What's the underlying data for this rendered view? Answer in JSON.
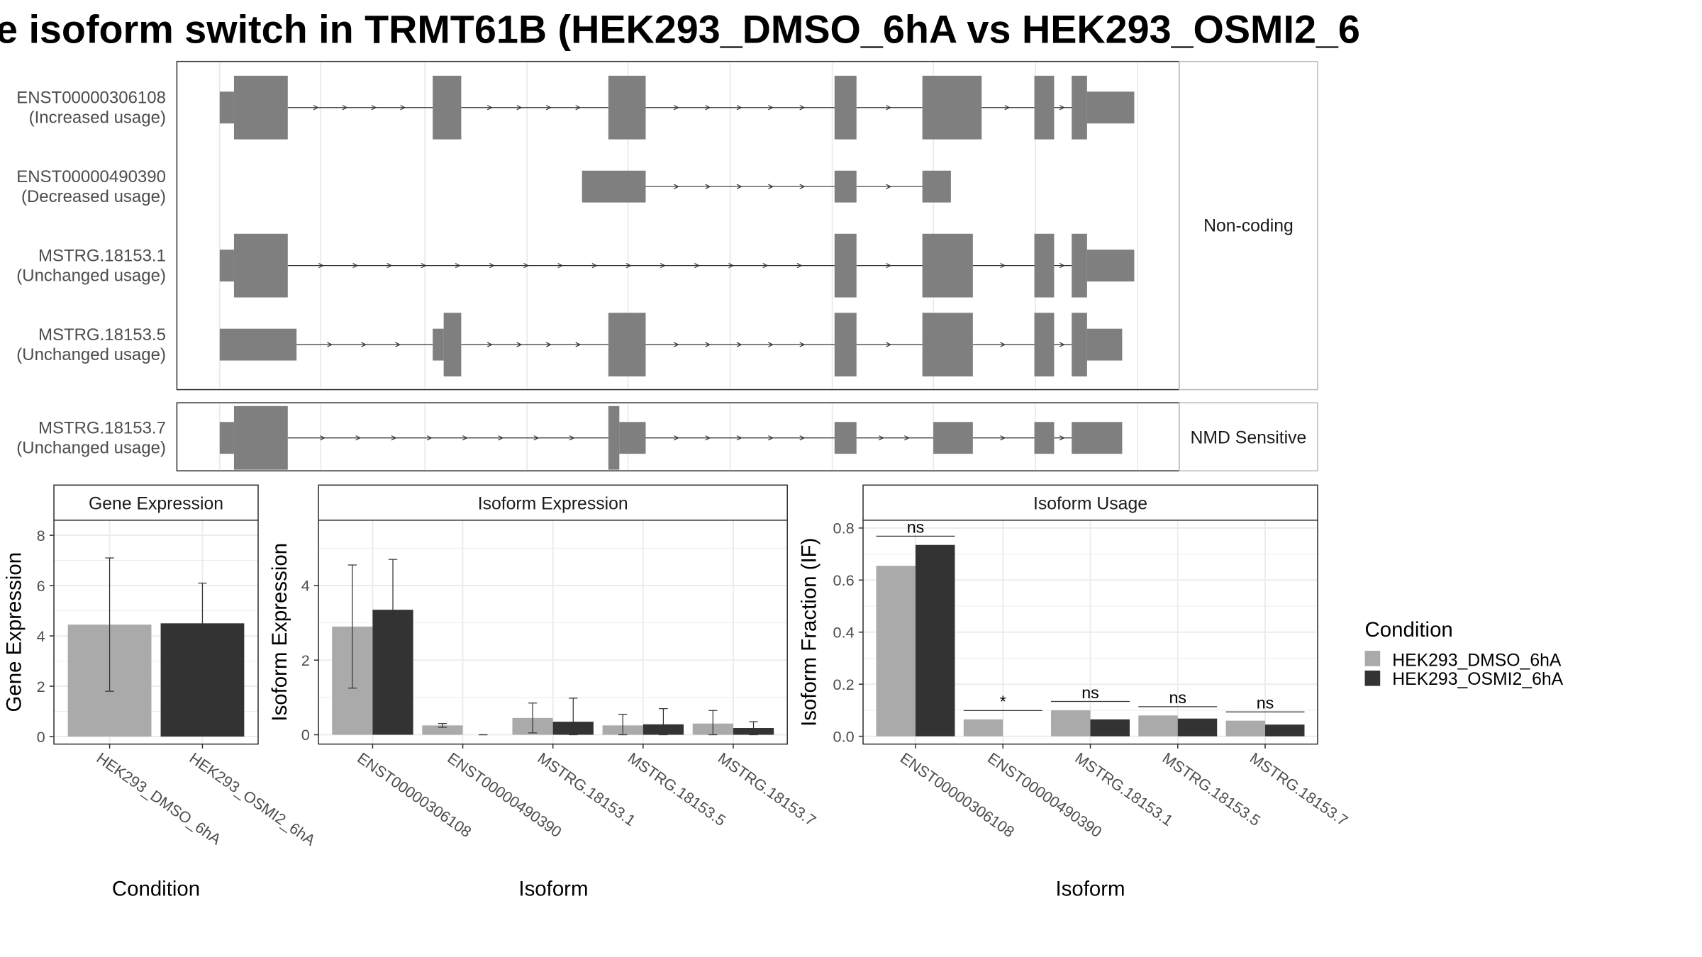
{
  "title": "e isoform switch in TRMT61B (HEK293_DMSO_6hA vs HEK293_OSMI2_6",
  "structure": {
    "panels": [
      {
        "label": "Non-coding",
        "rows": [
          {
            "name": "ENST00000306108",
            "usage": "(Increased usage)",
            "exons": [
              [
                200,
                213,
                "s"
              ],
              [
                213,
                262,
                "b"
              ],
              [
                394,
                420,
                "b"
              ],
              [
                554,
                588,
                "b"
              ],
              [
                760,
                780,
                "b"
              ],
              [
                840,
                894,
                "b"
              ],
              [
                942,
                960,
                "b"
              ],
              [
                976,
                990,
                "b"
              ],
              [
                990,
                1033,
                "s"
              ]
            ],
            "introns": [
              [
                262,
                394
              ],
              [
                420,
                554
              ],
              [
                588,
                760
              ],
              [
                780,
                840
              ],
              [
                894,
                942
              ],
              [
                960,
                976
              ]
            ]
          },
          {
            "name": "ENST00000490390",
            "usage": "(Decreased usage)",
            "exons": [
              [
                530,
                588,
                "s"
              ],
              [
                760,
                780,
                "s"
              ],
              [
                840,
                866,
                "s"
              ]
            ],
            "introns": [
              [
                588,
                760
              ],
              [
                780,
                840
              ]
            ]
          },
          {
            "name": "MSTRG.18153.1",
            "usage": "(Unchanged usage)",
            "exons": [
              [
                200,
                213,
                "s"
              ],
              [
                213,
                262,
                "b"
              ],
              [
                760,
                780,
                "b"
              ],
              [
                840,
                886,
                "b"
              ],
              [
                942,
                960,
                "b"
              ],
              [
                976,
                990,
                "b"
              ],
              [
                990,
                1033,
                "s"
              ]
            ],
            "introns": [
              [
                262,
                760
              ],
              [
                780,
                840
              ],
              [
                886,
                942
              ],
              [
                960,
                976
              ]
            ]
          },
          {
            "name": "MSTRG.18153.5",
            "usage": "(Unchanged usage)",
            "exons": [
              [
                200,
                270,
                "s"
              ],
              [
                394,
                404,
                "s"
              ],
              [
                404,
                420,
                "b"
              ],
              [
                554,
                588,
                "b"
              ],
              [
                760,
                780,
                "b"
              ],
              [
                840,
                886,
                "b"
              ],
              [
                942,
                960,
                "b"
              ],
              [
                976,
                990,
                "b"
              ],
              [
                990,
                1022,
                "s"
              ]
            ],
            "introns": [
              [
                270,
                394
              ],
              [
                420,
                554
              ],
              [
                588,
                760
              ],
              [
                780,
                840
              ],
              [
                886,
                942
              ],
              [
                960,
                976
              ]
            ]
          }
        ]
      },
      {
        "label": "NMD Sensitive",
        "rows": [
          {
            "name": "MSTRG.18153.7",
            "usage": "(Unchanged usage)",
            "exons": [
              [
                200,
                213,
                "s"
              ],
              [
                213,
                262,
                "b"
              ],
              [
                554,
                564,
                "b"
              ],
              [
                564,
                588,
                "s"
              ],
              [
                760,
                780,
                "s"
              ],
              [
                850,
                886,
                "s"
              ],
              [
                942,
                960,
                "s"
              ],
              [
                976,
                1022,
                "s"
              ]
            ],
            "introns": [
              [
                262,
                554
              ],
              [
                588,
                760
              ],
              [
                780,
                850
              ],
              [
                886,
                942
              ],
              [
                960,
                976
              ]
            ]
          }
        ]
      }
    ]
  },
  "chart_data": [
    {
      "type": "bar",
      "title": "Gene Expression",
      "xlabel": "Condition",
      "ylabel": "Gene Expression",
      "ylim": [
        -0.3,
        8.6
      ],
      "yticks": [
        0,
        2,
        4,
        6,
        8
      ],
      "categories": [
        "HEK293_DMSO_6hA",
        "HEK293_OSMI2_6hA"
      ],
      "series": [
        {
          "name": "HEK293_DMSO_6hA",
          "values": [
            4.45,
            null
          ],
          "err_low": [
            1.8,
            null
          ],
          "err_high": [
            7.1,
            null
          ]
        },
        {
          "name": "HEK293_OSMI2_6hA",
          "values": [
            null,
            4.5
          ],
          "err_low": [
            null,
            2.9
          ],
          "err_high": [
            null,
            6.1
          ]
        }
      ]
    },
    {
      "type": "bar",
      "title": "Isoform Expression",
      "xlabel": "Isoform",
      "ylabel": "Isoform Expression",
      "ylim": [
        -0.25,
        5.75
      ],
      "yticks": [
        0,
        2,
        4
      ],
      "categories": [
        "ENST00000306108",
        "ENST00000490390",
        "MSTRG.18153.1",
        "MSTRG.18153.5",
        "MSTRG.18153.7"
      ],
      "series": [
        {
          "name": "HEK293_DMSO_6hA",
          "values": [
            2.9,
            0.25,
            0.45,
            0.25,
            0.3
          ],
          "err_low": [
            1.25,
            0.2,
            0.05,
            0.0,
            0.0
          ],
          "err_high": [
            4.55,
            0.3,
            0.85,
            0.55,
            0.65
          ]
        },
        {
          "name": "HEK293_OSMI2_6hA",
          "values": [
            3.35,
            0.0,
            0.35,
            0.28,
            0.18
          ],
          "err_low": [
            2.0,
            0.0,
            0.0,
            0.0,
            0.0
          ],
          "err_high": [
            4.7,
            0.0,
            0.98,
            0.7,
            0.35
          ]
        }
      ]
    },
    {
      "type": "bar",
      "title": "Isoform Usage",
      "xlabel": "Isoform",
      "ylabel": "Isoform Fraction (IF)",
      "ylim": [
        -0.03,
        0.83
      ],
      "yticks": [
        0.0,
        0.2,
        0.4,
        0.6,
        0.8
      ],
      "categories": [
        "ENST00000306108",
        "ENST00000490390",
        "MSTRG.18153.1",
        "MSTRG.18153.5",
        "MSTRG.18153.7"
      ],
      "series": [
        {
          "name": "HEK293_DMSO_6hA",
          "values": [
            0.655,
            0.065,
            0.1,
            0.08,
            0.06
          ]
        },
        {
          "name": "HEK293_OSMI2_6hA",
          "values": [
            0.735,
            0.0,
            0.065,
            0.068,
            0.045
          ]
        }
      ],
      "significance": [
        "ns",
        "*",
        "ns",
        "ns",
        "ns"
      ]
    }
  ],
  "legend": {
    "title": "Condition",
    "items": [
      {
        "label": "HEK293_DMSO_6hA",
        "color": "#aaaaaa"
      },
      {
        "label": "HEK293_OSMI2_6hA",
        "color": "#333333"
      }
    ]
  },
  "colors": {
    "exon": "#7f7f7f",
    "grid": "#ebebeb",
    "panel_border": "#333333",
    "strip_border": "#bbbbbb"
  }
}
